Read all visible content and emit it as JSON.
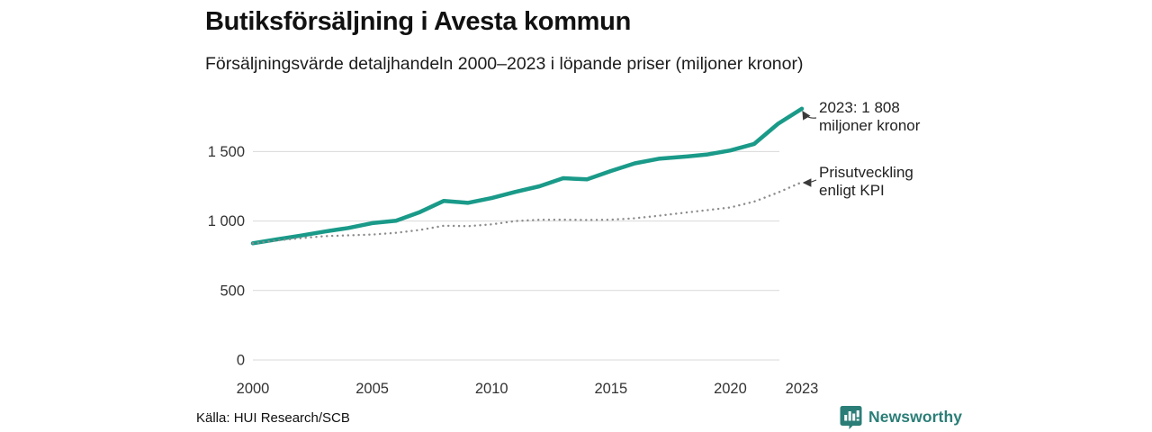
{
  "header": {
    "title": "Butiksförsäljning i Avesta kommun",
    "subtitle": "Försäljningsvärde detaljhandeln 2000–2023 i löpande priser (miljoner kronor)"
  },
  "annotations": {
    "sales_line1": "2023: 1 808",
    "sales_line2": "miljoner kronor",
    "kpi_line1": "Prisutveckling",
    "kpi_line2": "enligt KPI"
  },
  "footer": {
    "source": "Källa: HUI Research/SCB",
    "brand": "Newsworthy"
  },
  "colors": {
    "accent": "#1a9a89",
    "kpi": "#8c8c8c",
    "grid": "#d9d9d9",
    "tick_text": "#333333",
    "brand": "#2b7e77",
    "arrow": "#3a3a3a"
  },
  "chart_data": {
    "type": "line",
    "title": "Butiksförsäljning i Avesta kommun",
    "subtitle": "Försäljningsvärde detaljhandeln 2000–2023 i löpande priser (miljoner kronor)",
    "xlabel": "",
    "ylabel": "",
    "x": [
      2000,
      2001,
      2002,
      2003,
      2004,
      2005,
      2006,
      2007,
      2008,
      2009,
      2010,
      2011,
      2012,
      2013,
      2014,
      2015,
      2016,
      2017,
      2018,
      2019,
      2020,
      2021,
      2022,
      2023
    ],
    "series": [
      {
        "name": "Butiksförsäljning (löpande priser)",
        "style": "solid",
        "color": "#1a9a89",
        "values": [
          840,
          868,
          895,
          924,
          950,
          985,
          1002,
          1065,
          1145,
          1131,
          1165,
          1210,
          1250,
          1308,
          1300,
          1360,
          1415,
          1448,
          1462,
          1478,
          1508,
          1555,
          1700,
          1808
        ]
      },
      {
        "name": "Prisutveckling enligt KPI",
        "style": "dotted",
        "color": "#8c8c8c",
        "values": [
          840,
          860,
          877,
          891,
          897,
          903,
          915,
          936,
          966,
          963,
          976,
          1000,
          1009,
          1010,
          1008,
          1010,
          1020,
          1038,
          1058,
          1078,
          1098,
          1140,
          1205,
          1280
        ]
      }
    ],
    "xticks": [
      2000,
      2005,
      2010,
      2015,
      2020,
      2023
    ],
    "yticks": [
      {
        "value": 0,
        "label": "0"
      },
      {
        "value": 500,
        "label": "500"
      },
      {
        "value": 1000,
        "label": "1 000"
      },
      {
        "value": 1500,
        "label": "1 500"
      }
    ],
    "xlim": [
      2000,
      2023
    ],
    "ylim": [
      0,
      1550
    ],
    "grid": "horizontal",
    "legend": "none",
    "annotations": [
      {
        "text": "2023: 1 808 miljoner kronor",
        "year": 2023,
        "value": 1808,
        "series": "Butiksförsäljning (löpande priser)"
      },
      {
        "text": "Prisutveckling enligt KPI",
        "year": 2023,
        "value": 1280,
        "series": "Prisutveckling enligt KPI"
      }
    ],
    "source": "Källa: HUI Research/SCB"
  }
}
